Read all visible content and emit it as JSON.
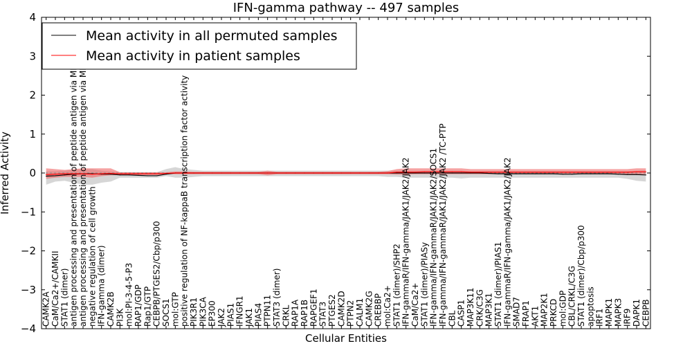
{
  "chart_data": {
    "type": "line",
    "title": "IFN-gamma pathway -- 497 samples",
    "xlabel": "Cellular Entities",
    "ylabel": "Inferred Activity",
    "ylim": [
      -4,
      4
    ],
    "yticks": [
      -4,
      -3,
      -2,
      -1,
      0,
      1,
      2,
      3,
      4
    ],
    "ytick_labels": [
      "−4",
      "−3",
      "−2",
      "−1",
      "0",
      "1",
      "2",
      "3",
      "4"
    ],
    "legend": {
      "placement": "upper-left",
      "entries": [
        {
          "label": "Mean activity in all permuted samples",
          "color": "#000000"
        },
        {
          "label": "Mean activity in patient samples",
          "color": "#ff0000"
        }
      ]
    },
    "categories": [
      "CAMK2A",
      "CaM/Ca2+/CAMKII",
      "STAT1 (dimer)",
      "antigen processing and presentation of peptide antigen via MHC class I",
      "antigen processing and presentation of peptide antigen via MHC class II",
      "negative regulation of cell growth",
      "IFN-gamma (dimer)",
      "CAMK2B",
      "PI3K",
      "mol:PI-3-4-5-P3",
      "RAP1/GDP",
      "Rap1/GTP",
      "CEBPB/PTGES2/Cbp/p300",
      "SOCS1",
      "mol:GTP",
      "positive regulation of NF-kappaB transcription factor activity",
      "PIK3R1",
      "PIK3CA",
      "EP300",
      "JAK2",
      "PIAS1",
      "IFNGR1",
      "JAK1",
      "PIAS4",
      "PTPN11",
      "STAT3 (dimer)",
      "CRKL",
      "RAP1A",
      "RAP1B",
      "RAPGEF1",
      "STAT3",
      "PTGES2",
      "CAMK2D",
      "PTPN2",
      "CALM1",
      "CAMK2G",
      "CREBBP",
      "mol:Ca2+",
      "STAT1 (dimer)/SHP2",
      "IFN-gammaR/IFN-gamma/JAK1/JAK2/JAK2",
      "CaM/Ca2+",
      "STAT1 (dimer)/PIASy",
      "IFN-gamma/IFN-gammaR/JAK1/JAK2/SOCS1",
      "IFN-gamma/IFN-gammaR/JAK1/JAK2/JAK2 /TC-PTP",
      "CBL",
      "CASP1",
      "MAP3K11",
      "CRK/C3G",
      "MAP3K1",
      "STAT1 (dimer)/PIAS1",
      "IFN-gammaR/IFN-gamma/JAK1/JAK2/JAK2",
      "SMAD7",
      "FRAP1",
      "AKT1",
      "MAP2K1",
      "PRKCD",
      "mol:GDP",
      "CBL/CRKL/C3G",
      "STAT1 (dimer)/Cbp/p300",
      "apoptosis",
      "IRF1",
      "MAPK1",
      "MAPK3",
      "IRF9",
      "DAPK1",
      "CEBPB"
    ],
    "series": [
      {
        "name": "Mean activity in all permuted samples",
        "color": "#000000",
        "values": [
          -0.08,
          -0.07,
          -0.05,
          -0.03,
          -0.02,
          -0.02,
          -0.03,
          -0.03,
          -0.05,
          -0.05,
          -0.06,
          -0.07,
          -0.07,
          -0.03,
          0.0,
          0.0,
          0.0,
          0.0,
          0.0,
          0.0,
          0.0,
          0.0,
          0.0,
          0.0,
          0.0,
          0.0,
          0.0,
          0.0,
          0.0,
          0.0,
          0.0,
          0.0,
          0.0,
          0.0,
          0.0,
          0.0,
          0.0,
          0.0,
          0.0,
          0.0,
          0.0,
          0.0,
          0.0,
          0.0,
          0.0,
          0.0,
          0.0,
          0.0,
          -0.01,
          -0.02,
          -0.02,
          -0.02,
          -0.02,
          -0.02,
          -0.02,
          -0.02,
          -0.03,
          -0.03,
          -0.02,
          -0.02,
          -0.02,
          -0.02,
          -0.03,
          -0.04,
          -0.04,
          -0.05
        ],
        "lower": [
          -0.3,
          -0.22,
          -0.2,
          -0.25,
          -0.3,
          -0.3,
          -0.25,
          -0.22,
          -0.12,
          -0.12,
          -0.12,
          -0.12,
          -0.12,
          -0.08,
          -0.12,
          -0.12,
          -0.1,
          -0.08,
          -0.08,
          -0.08,
          -0.08,
          -0.08,
          -0.08,
          -0.08,
          -0.08,
          -0.08,
          -0.08,
          -0.08,
          -0.08,
          -0.08,
          -0.08,
          -0.08,
          -0.08,
          -0.08,
          -0.08,
          -0.08,
          -0.08,
          -0.1,
          -0.1,
          -0.12,
          -0.12,
          -0.12,
          -0.12,
          -0.12,
          -0.12,
          -0.14,
          -0.12,
          -0.12,
          -0.12,
          -0.12,
          -0.12,
          -0.12,
          -0.12,
          -0.12,
          -0.12,
          -0.12,
          -0.12,
          -0.12,
          -0.12,
          -0.12,
          -0.12,
          -0.12,
          -0.12,
          -0.15,
          -0.2,
          -0.22
        ],
        "upper": [
          0.05,
          0.05,
          0.06,
          0.08,
          0.1,
          0.1,
          0.06,
          0.04,
          0.02,
          0.02,
          0.02,
          0.02,
          0.02,
          0.1,
          0.15,
          0.1,
          0.08,
          0.06,
          0.06,
          0.06,
          0.06,
          0.06,
          0.06,
          0.06,
          0.06,
          0.06,
          0.06,
          0.06,
          0.06,
          0.06,
          0.06,
          0.06,
          0.06,
          0.06,
          0.06,
          0.06,
          0.06,
          0.06,
          0.06,
          0.06,
          0.06,
          0.06,
          0.06,
          0.06,
          0.06,
          0.06,
          0.05,
          0.05,
          0.05,
          0.05,
          0.05,
          0.05,
          0.05,
          0.05,
          0.05,
          0.05,
          0.05,
          0.05,
          0.05,
          0.05,
          0.05,
          0.05,
          0.05,
          0.05,
          0.06,
          0.07
        ]
      },
      {
        "name": "Mean activity in patient samples",
        "color": "#ff0000",
        "values": [
          -0.04,
          -0.03,
          -0.02,
          -0.02,
          -0.02,
          -0.03,
          -0.02,
          -0.01,
          -0.02,
          -0.02,
          -0.02,
          -0.02,
          -0.02,
          -0.01,
          0.0,
          0.0,
          0.0,
          0.0,
          0.0,
          0.0,
          0.0,
          0.0,
          0.0,
          0.0,
          0.0,
          0.0,
          0.0,
          0.0,
          0.0,
          0.0,
          0.0,
          0.0,
          0.0,
          0.0,
          0.0,
          0.0,
          0.0,
          0.0,
          0.02,
          0.02,
          0.02,
          0.03,
          0.03,
          0.03,
          0.03,
          0.03,
          0.02,
          0.02,
          0.02,
          0.02,
          0.02,
          0.02,
          0.02,
          0.02,
          0.02,
          0.02,
          0.02,
          0.02,
          0.02,
          0.02,
          0.02,
          0.02,
          0.02,
          0.02,
          0.03,
          0.03
        ],
        "lower": [
          -0.15,
          -0.12,
          -0.1,
          -0.1,
          -0.1,
          -0.12,
          -0.08,
          -0.06,
          -0.05,
          -0.05,
          -0.05,
          -0.05,
          -0.05,
          -0.03,
          -0.03,
          -0.03,
          -0.03,
          -0.03,
          -0.03,
          -0.03,
          -0.03,
          -0.03,
          -0.03,
          -0.03,
          -0.06,
          -0.03,
          -0.03,
          -0.03,
          -0.03,
          -0.03,
          -0.03,
          -0.03,
          -0.03,
          -0.03,
          -0.03,
          -0.03,
          -0.03,
          -0.03,
          -0.04,
          -0.04,
          -0.03,
          -0.03,
          -0.03,
          -0.03,
          -0.03,
          -0.03,
          -0.03,
          -0.03,
          -0.03,
          -0.03,
          -0.03,
          -0.03,
          -0.03,
          -0.03,
          -0.03,
          -0.03,
          -0.03,
          -0.03,
          -0.03,
          -0.03,
          -0.03,
          -0.03,
          -0.03,
          -0.03,
          -0.03,
          -0.03
        ],
        "upper": [
          0.12,
          0.1,
          0.08,
          0.1,
          0.12,
          0.12,
          0.12,
          0.12,
          0.02,
          0.02,
          0.02,
          0.02,
          0.02,
          0.02,
          0.04,
          0.04,
          0.03,
          0.03,
          0.03,
          0.03,
          0.03,
          0.03,
          0.03,
          0.03,
          0.06,
          0.03,
          0.03,
          0.03,
          0.03,
          0.03,
          0.03,
          0.03,
          0.03,
          0.03,
          0.03,
          0.03,
          0.03,
          0.05,
          0.1,
          0.12,
          0.12,
          0.12,
          0.12,
          0.12,
          0.12,
          0.12,
          0.1,
          0.1,
          0.1,
          0.1,
          0.1,
          0.1,
          0.1,
          0.1,
          0.1,
          0.1,
          0.1,
          0.1,
          0.1,
          0.1,
          0.1,
          0.1,
          0.1,
          0.1,
          0.12,
          0.12
        ]
      }
    ]
  }
}
